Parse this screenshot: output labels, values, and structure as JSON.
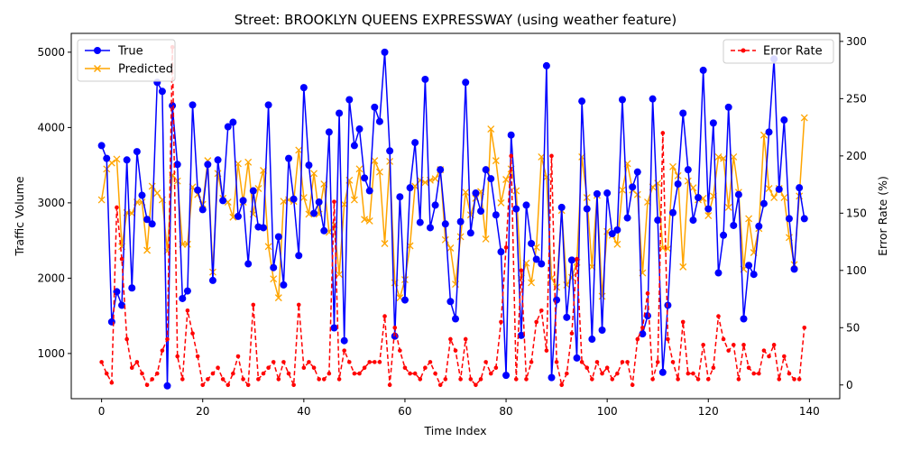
{
  "chart_data": {
    "type": "line",
    "title": "Street: BROOKLYN QUEENS EXPRESSWAY (using weather feature)",
    "xlabel": "Time Index",
    "ylabel_left": "Traffic Volume",
    "ylabel_right": "Error Rate (%)",
    "xlim": [
      -6,
      146
    ],
    "ylim_left": [
      400,
      5250
    ],
    "ylim_right": [
      -12,
      307
    ],
    "x_ticks": [
      0,
      20,
      40,
      60,
      80,
      100,
      120,
      140
    ],
    "y_ticks_left": [
      1000,
      2000,
      3000,
      4000,
      5000
    ],
    "y_ticks_right": [
      0,
      50,
      100,
      150,
      200,
      250,
      300
    ],
    "legend_left": {
      "placement": "top-left",
      "entries": [
        "True",
        "Predicted"
      ]
    },
    "legend_right": {
      "placement": "top-right",
      "entries": [
        "Error Rate"
      ]
    },
    "colors": {
      "true": "#0000ff",
      "predicted": "#ffa500",
      "error": "#ff0000"
    },
    "series": [
      {
        "name": "True",
        "axis": "left",
        "style": "solid-circle",
        "values": [
          3760,
          3590,
          1420,
          1820,
          1640,
          3570,
          1870,
          3680,
          3100,
          2780,
          2720,
          4600,
          4480,
          570,
          4290,
          3510,
          1730,
          1830,
          4300,
          3170,
          2910,
          3510,
          1970,
          3570,
          3030,
          4010,
          4070,
          2820,
          3030,
          2190,
          3160,
          2680,
          2670,
          4300,
          2140,
          2550,
          1910,
          3590,
          3050,
          2300,
          4530,
          3500,
          2860,
          3010,
          2630,
          3940,
          1340,
          4190,
          1170,
          4370,
          3760,
          3980,
          3330,
          3160,
          4270,
          4080,
          5000,
          3690,
          1230,
          3080,
          1710,
          3200,
          3800,
          2740,
          4640,
          2670,
          2970,
          3440,
          2720,
          1690,
          1460,
          2750,
          4600,
          2600,
          3130,
          2890,
          3440,
          3320,
          2840,
          2350,
          710,
          3900,
          2920,
          1240,
          2970,
          2460,
          2250,
          2190,
          4820,
          680,
          1710,
          2940,
          1480,
          2240,
          940,
          4350,
          2920,
          1190,
          3120,
          1310,
          3130,
          2590,
          2640,
          4370,
          2800,
          3210,
          3410,
          1260,
          1500,
          4380,
          2770,
          750,
          1640,
          2870,
          3250,
          4190,
          3440,
          2770,
          3070,
          4760,
          2920,
          4060,
          2070,
          2570,
          4270,
          2700,
          3110,
          1460,
          2170,
          2050,
          2690,
          2990,
          3940,
          4910,
          3180,
          4100,
          2790,
          2120,
          3200,
          2790
        ]
      },
      {
        "name": "Predicted",
        "axis": "left",
        "style": "solid-x",
        "values": [
          3040,
          3450,
          3530,
          3580,
          2420,
          2870,
          2860,
          3010,
          3010,
          2370,
          3220,
          3130,
          3040,
          2360,
          3370,
          3290,
          2450,
          2450,
          3210,
          3110,
          2980,
          3560,
          2080,
          3390,
          3060,
          3010,
          2810,
          3520,
          3010,
          3540,
          2850,
          3190,
          3430,
          2420,
          1990,
          1740,
          3020,
          3040,
          3020,
          3700,
          3070,
          2850,
          3390,
          2850,
          3250,
          2610,
          2710,
          2050,
          2980,
          3300,
          3040,
          3450,
          2780,
          2760,
          3560,
          3410,
          2460,
          3550,
          1940,
          1740,
          1980,
          2430,
          3220,
          3300,
          3270,
          3300,
          3320,
          3440,
          2510,
          2400,
          1920,
          2550,
          3140,
          2840,
          3060,
          3150,
          2520,
          3980,
          3560,
          3000,
          3310,
          3450,
          3160,
          2000,
          2200,
          1940,
          2410,
          3610,
          3340,
          2000,
          1880,
          2900,
          1910,
          2010,
          2210,
          3610,
          3070,
          2150,
          3100,
          1760,
          2620,
          2570,
          2450,
          3170,
          3520,
          3170,
          3110,
          2070,
          3010,
          3210,
          3260,
          2400,
          2390,
          3480,
          3360,
          2150,
          3290,
          3200,
          3040,
          3060,
          2830,
          3090,
          3610,
          3590,
          2940,
          3610,
          3140,
          2120,
          2790,
          2340,
          2660,
          3900,
          3190,
          3070,
          3190,
          3070,
          2540,
          2180,
          3090,
          4130
        ]
      },
      {
        "name": "Error Rate",
        "axis": "right",
        "style": "dashed-dot",
        "values": [
          20,
          10,
          2,
          155,
          110,
          40,
          15,
          20,
          10,
          0,
          5,
          10,
          30,
          40,
          295,
          25,
          5,
          65,
          45,
          25,
          0,
          5,
          10,
          15,
          5,
          0,
          10,
          25,
          5,
          0,
          70,
          5,
          10,
          15,
          20,
          5,
          20,
          10,
          0,
          70,
          15,
          20,
          15,
          5,
          5,
          10,
          160,
          5,
          30,
          20,
          10,
          10,
          15,
          20,
          20,
          20,
          60,
          0,
          50,
          30,
          15,
          10,
          10,
          5,
          15,
          20,
          10,
          0,
          5,
          40,
          30,
          5,
          40,
          5,
          0,
          5,
          20,
          10,
          15,
          55,
          120,
          200,
          5,
          100,
          5,
          20,
          55,
          65,
          30,
          200,
          20,
          0,
          10,
          45,
          110,
          20,
          15,
          5,
          20,
          10,
          15,
          5,
          10,
          20,
          20,
          0,
          40,
          50,
          80,
          5,
          20,
          220,
          40,
          20,
          5,
          55,
          10,
          10,
          5,
          35,
          5,
          15,
          60,
          40,
          30,
          35,
          5,
          35,
          15,
          10,
          10,
          30,
          25,
          35,
          5,
          25,
          10,
          5,
          5,
          50
        ]
      }
    ]
  }
}
